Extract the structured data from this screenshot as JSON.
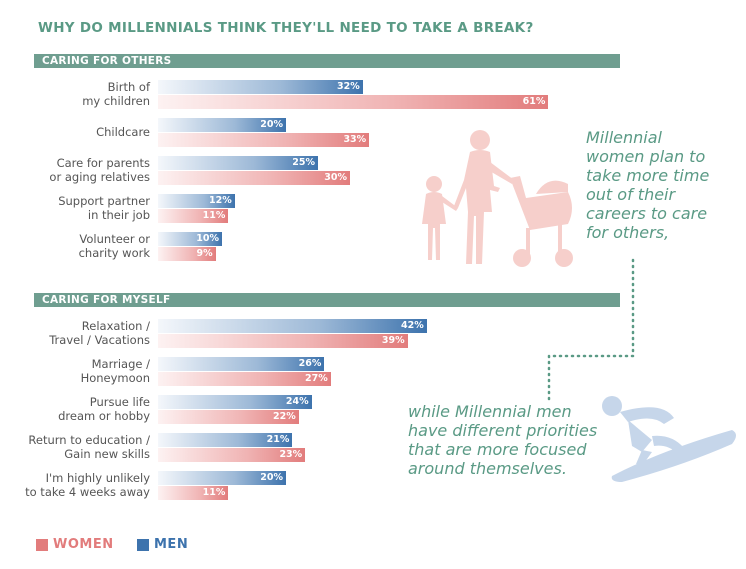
{
  "title": "WHY DO MILLENNIALS THINK THEY'LL NEED TO TAKE A BREAK?",
  "colors": {
    "title": "#5a9a85",
    "header": "#6f9e90",
    "men": "#3d73ad",
    "women": "#e27c7c",
    "annotation": "#5a9a85",
    "illustration_women": "#f6cfcb",
    "illustration_men": "#c6d6ea"
  },
  "annotations": {
    "women": [
      "Millennial",
      "women plan to",
      "take more time",
      "out of their",
      "careers to care",
      "for others,"
    ],
    "men": [
      "while Millennial men",
      "have different priorities",
      "that are more focused",
      "around themselves."
    ]
  },
  "illustrations": {
    "women": "mother-child-stroller-icon",
    "men": "surfer-icon"
  },
  "legend": {
    "women": "WOMEN",
    "men": "MEN"
  },
  "chart_data": {
    "type": "bar",
    "orientation": "horizontal",
    "xlim": [
      0,
      65
    ],
    "series_names": [
      "Men",
      "Women"
    ],
    "sections": [
      {
        "header": "CARING FOR OTHERS",
        "categories": [
          {
            "label": [
              "Birth of",
              "my children"
            ],
            "men": 32,
            "women": 61
          },
          {
            "label": [
              "Childcare"
            ],
            "men": 20,
            "women": 33
          },
          {
            "label": [
              "Care for parents",
              "or aging relatives"
            ],
            "men": 25,
            "women": 30
          },
          {
            "label": [
              "Support partner",
              "in their job"
            ],
            "men": 12,
            "women": 11
          },
          {
            "label": [
              "Volunteer or",
              "charity work"
            ],
            "men": 10,
            "women": 9
          }
        ]
      },
      {
        "header": "CARING FOR MYSELF",
        "categories": [
          {
            "label": [
              "Relaxation /",
              "Travel / Vacations"
            ],
            "men": 42,
            "women": 39
          },
          {
            "label": [
              "Marriage /",
              "Honeymoon"
            ],
            "men": 26,
            "women": 27
          },
          {
            "label": [
              "Pursue life",
              "dream or hobby"
            ],
            "men": 24,
            "women": 22
          },
          {
            "label": [
              "Return to education /",
              "Gain new skills"
            ],
            "men": 21,
            "women": 23
          },
          {
            "label": [
              "I'm highly unlikely",
              "to take 4 weeks away"
            ],
            "men": 20,
            "women": 11
          }
        ]
      }
    ]
  }
}
